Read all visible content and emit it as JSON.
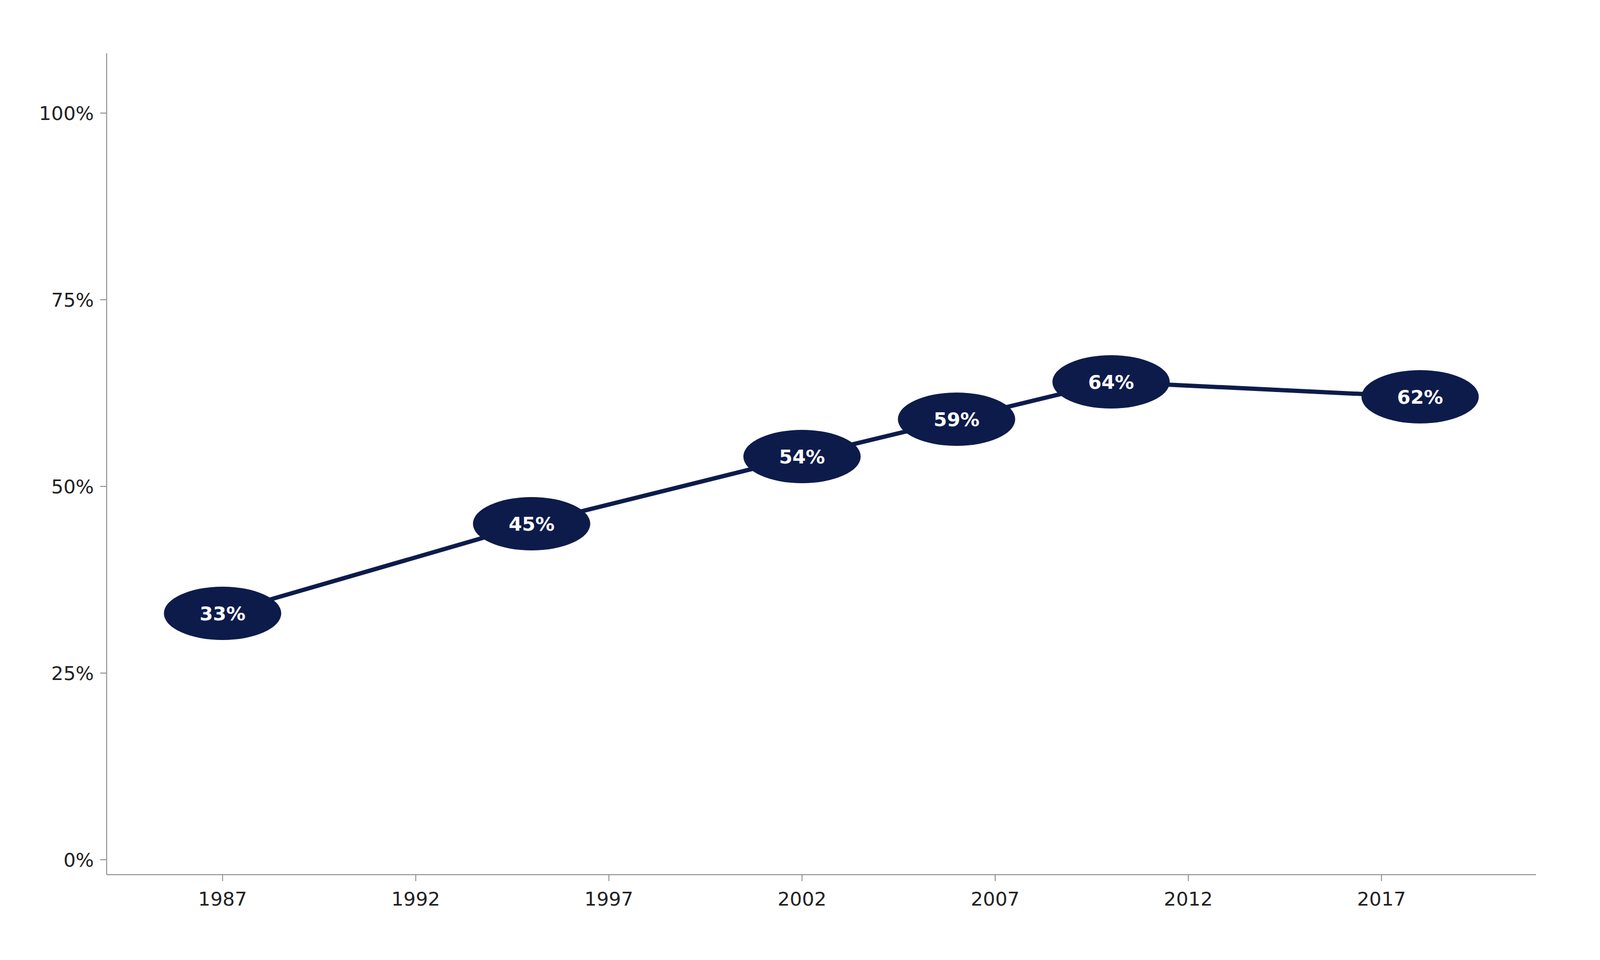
{
  "chart_data": {
    "type": "line",
    "x": [
      1987,
      1995,
      2002,
      2006,
      2010,
      2018
    ],
    "values": [
      0.33,
      0.45,
      0.54,
      0.59,
      0.64,
      0.62
    ],
    "value_labels": [
      "33%",
      "45%",
      "54%",
      "59%",
      "64%",
      "62%"
    ],
    "data_labels": true,
    "color": "#0d1b4b",
    "marker": "ellipse",
    "grid": false,
    "xlim": [
      1984,
      2021
    ],
    "xticks": [
      1987,
      1992,
      1997,
      2002,
      2007,
      2012,
      2017
    ],
    "ylim": [
      -0.02,
      1.08
    ],
    "yticks": [
      {
        "value": 0.0,
        "label": "0%"
      },
      {
        "value": 0.25,
        "label": "25%"
      },
      {
        "value": 0.5,
        "label": "50%"
      },
      {
        "value": 0.75,
        "label": "75%"
      },
      {
        "value": 1.0,
        "label": "100%"
      }
    ]
  }
}
